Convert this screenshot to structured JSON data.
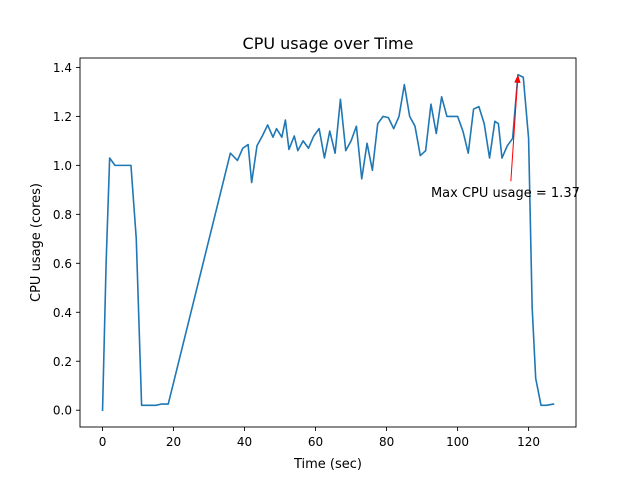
{
  "chart_data": {
    "type": "line",
    "title": "CPU usage over Time",
    "xlabel": "Time (sec)",
    "ylabel": "CPU usage (cores)",
    "xlim": [
      -6.35,
      133.35
    ],
    "ylim": [
      -0.0685,
      1.4385
    ],
    "xticks": [
      0,
      20,
      40,
      60,
      80,
      100,
      120
    ],
    "yticks": [
      0.0,
      0.2,
      0.4,
      0.6,
      0.8,
      1.0,
      1.2,
      1.4
    ],
    "xtick_labels": [
      "0",
      "20",
      "40",
      "60",
      "80",
      "100",
      "120"
    ],
    "ytick_labels": [
      "0.0",
      "0.2",
      "0.4",
      "0.6",
      "0.8",
      "1.0",
      "1.2",
      "1.4"
    ],
    "grid": false,
    "series": [
      {
        "color": "#1f77b4",
        "x": [
          0,
          1,
          2,
          3.5,
          5,
          6.5,
          8,
          9.5,
          11,
          13,
          15,
          16.5,
          18.5,
          36,
          38,
          39.5,
          41,
          42,
          43.5,
          45,
          46.5,
          48,
          49,
          50.5,
          51.5,
          52.5,
          54,
          55,
          56.5,
          58,
          59.5,
          61,
          62.5,
          64,
          65.5,
          67,
          68.5,
          70,
          71.5,
          73,
          74.5,
          76,
          77.5,
          79,
          80.5,
          82,
          83.5,
          85,
          86.5,
          88,
          89.5,
          91,
          92.5,
          94,
          95.5,
          97,
          98.5,
          100,
          101.5,
          103,
          104.5,
          106,
          107.5,
          109,
          110.5,
          111.5,
          112.5,
          114,
          115.5,
          117,
          118.5,
          120,
          121,
          122,
          123.5,
          125,
          127
        ],
        "y": [
          0.0,
          0.6,
          1.03,
          1.0,
          1.0,
          1.0,
          1.0,
          0.7,
          0.02,
          0.02,
          0.02,
          0.025,
          0.025,
          1.05,
          1.02,
          1.07,
          1.085,
          0.93,
          1.08,
          1.12,
          1.165,
          1.115,
          1.15,
          1.115,
          1.185,
          1.065,
          1.12,
          1.06,
          1.1,
          1.07,
          1.12,
          1.15,
          1.03,
          1.14,
          1.05,
          1.27,
          1.06,
          1.1,
          1.16,
          0.945,
          1.09,
          0.98,
          1.17,
          1.2,
          1.195,
          1.15,
          1.2,
          1.33,
          1.2,
          1.16,
          1.04,
          1.06,
          1.25,
          1.13,
          1.28,
          1.2,
          1.2,
          1.2,
          1.14,
          1.05,
          1.23,
          1.24,
          1.17,
          1.03,
          1.18,
          1.17,
          1.03,
          1.08,
          1.11,
          1.37,
          1.36,
          1.11,
          0.42,
          0.13,
          0.02,
          0.02,
          0.025
        ]
      }
    ],
    "annotation": {
      "text": "Max CPU usage = 1.37",
      "color": "#ff0000",
      "xy": [
        117,
        1.37
      ],
      "xytext": [
        92.5,
        0.87
      ]
    }
  }
}
